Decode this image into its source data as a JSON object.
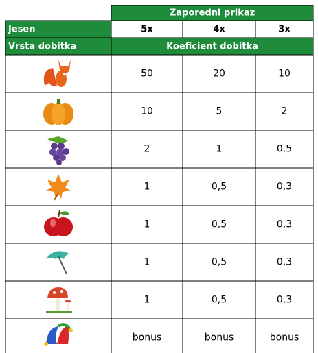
{
  "header": {
    "title": "Zaporedni prikaz",
    "theme": "Jesen",
    "columns": [
      "5x",
      "4x",
      "3x"
    ],
    "row_label": "Vrsta dobitka",
    "subtitle": "Koeficient dobitka"
  },
  "table": {
    "rows": [
      [
        "50",
        "20",
        "10"
      ],
      [
        "10",
        "5",
        "2"
      ],
      [
        "2",
        "1",
        "0,5"
      ],
      [
        "1",
        "0,5",
        "0,3"
      ],
      [
        "1",
        "0,5",
        "0,3"
      ],
      [
        "1",
        "0,5",
        "0,3"
      ],
      [
        "1",
        "0,5",
        "0,3"
      ],
      [
        "bonus",
        "bonus",
        "bonus"
      ]
    ]
  }
}
